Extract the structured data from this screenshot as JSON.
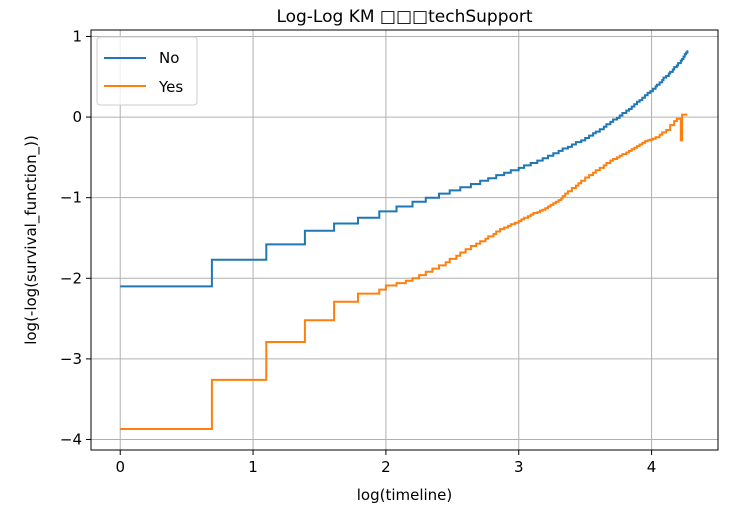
{
  "chart_data": {
    "type": "line",
    "title": "Log-Log KM □□□techSupport",
    "xlabel": "log(timeline)",
    "ylabel": "log(-log(survival_function_))",
    "xlim": [
      -0.22,
      4.5
    ],
    "ylim": [
      -4.13,
      1.08
    ],
    "xticks": [
      0,
      1,
      2,
      3,
      4
    ],
    "yticks": [
      -4,
      -3,
      -2,
      -1,
      0,
      1
    ],
    "xtick_labels": [
      "0",
      "1",
      "2",
      "3",
      "4"
    ],
    "ytick_labels": [
      "−4",
      "−3",
      "−2",
      "−1",
      "0",
      "1"
    ],
    "grid": true,
    "legend_position": "top-left",
    "series": [
      {
        "name": "No",
        "color": "#1f77b4",
        "step": "post",
        "x": [
          0.0,
          0.69,
          1.1,
          1.39,
          1.61,
          1.79,
          1.95,
          2.08,
          2.2,
          2.3,
          2.4,
          2.48,
          2.56,
          2.64,
          2.71,
          2.77,
          2.83,
          2.89,
          2.94,
          3.0,
          3.04,
          3.09,
          3.14,
          3.18,
          3.22,
          3.26,
          3.3,
          3.33,
          3.37,
          3.4,
          3.43,
          3.47,
          3.5,
          3.53,
          3.56,
          3.58,
          3.61,
          3.64,
          3.66,
          3.69,
          3.71,
          3.74,
          3.76,
          3.78,
          3.81,
          3.83,
          3.85,
          3.87,
          3.89,
          3.91,
          3.93,
          3.95,
          3.97,
          3.99,
          4.01,
          4.03,
          4.04,
          4.06,
          4.08,
          4.09,
          4.11,
          4.13,
          4.14,
          4.16,
          4.17,
          4.19,
          4.2,
          4.22,
          4.23,
          4.24,
          4.25,
          4.26,
          4.27
        ],
        "y": [
          -2.1,
          -1.77,
          -1.58,
          -1.41,
          -1.32,
          -1.25,
          -1.17,
          -1.11,
          -1.05,
          -1.0,
          -0.95,
          -0.91,
          -0.87,
          -0.83,
          -0.79,
          -0.76,
          -0.72,
          -0.69,
          -0.66,
          -0.63,
          -0.6,
          -0.57,
          -0.54,
          -0.51,
          -0.48,
          -0.45,
          -0.42,
          -0.39,
          -0.37,
          -0.34,
          -0.31,
          -0.29,
          -0.26,
          -0.23,
          -0.2,
          -0.18,
          -0.15,
          -0.12,
          -0.09,
          -0.06,
          -0.03,
          -0.01,
          0.02,
          0.05,
          0.08,
          0.1,
          0.13,
          0.16,
          0.19,
          0.21,
          0.24,
          0.27,
          0.3,
          0.32,
          0.35,
          0.38,
          0.4,
          0.43,
          0.46,
          0.49,
          0.51,
          0.54,
          0.56,
          0.59,
          0.62,
          0.64,
          0.67,
          0.7,
          0.72,
          0.75,
          0.78,
          0.8,
          0.83
        ]
      },
      {
        "name": "Yes",
        "color": "#ff7f0e",
        "step": "post",
        "x": [
          0.0,
          0.69,
          1.1,
          1.39,
          1.61,
          1.79,
          1.95,
          2.0,
          2.08,
          2.15,
          2.2,
          2.25,
          2.3,
          2.35,
          2.4,
          2.45,
          2.48,
          2.53,
          2.56,
          2.6,
          2.64,
          2.68,
          2.71,
          2.75,
          2.77,
          2.81,
          2.83,
          2.86,
          2.89,
          2.92,
          2.94,
          2.97,
          3.0,
          3.02,
          3.04,
          3.07,
          3.09,
          3.11,
          3.14,
          3.16,
          3.18,
          3.2,
          3.22,
          3.24,
          3.26,
          3.28,
          3.3,
          3.32,
          3.33,
          3.35,
          3.37,
          3.4,
          3.43,
          3.45,
          3.47,
          3.5,
          3.53,
          3.56,
          3.58,
          3.61,
          3.64,
          3.66,
          3.69,
          3.71,
          3.74,
          3.76,
          3.78,
          3.81,
          3.83,
          3.85,
          3.87,
          3.89,
          3.91,
          3.93,
          3.95,
          3.97,
          3.99,
          4.01,
          4.03,
          4.06,
          4.08,
          4.11,
          4.14,
          4.17,
          4.19,
          4.22,
          4.23,
          4.27
        ],
        "y": [
          -3.87,
          -3.26,
          -2.79,
          -2.52,
          -2.29,
          -2.19,
          -2.14,
          -2.09,
          -2.06,
          -2.03,
          -2.0,
          -1.96,
          -1.92,
          -1.88,
          -1.84,
          -1.8,
          -1.76,
          -1.72,
          -1.68,
          -1.64,
          -1.6,
          -1.57,
          -1.54,
          -1.51,
          -1.48,
          -1.45,
          -1.42,
          -1.39,
          -1.37,
          -1.35,
          -1.33,
          -1.31,
          -1.29,
          -1.27,
          -1.25,
          -1.23,
          -1.21,
          -1.19,
          -1.18,
          -1.16,
          -1.15,
          -1.13,
          -1.11,
          -1.09,
          -1.07,
          -1.05,
          -1.03,
          -1.01,
          -0.98,
          -0.95,
          -0.92,
          -0.88,
          -0.85,
          -0.82,
          -0.79,
          -0.75,
          -0.72,
          -0.69,
          -0.66,
          -0.63,
          -0.6,
          -0.57,
          -0.54,
          -0.52,
          -0.5,
          -0.48,
          -0.46,
          -0.44,
          -0.42,
          -0.4,
          -0.38,
          -0.36,
          -0.34,
          -0.32,
          -0.3,
          -0.29,
          -0.28,
          -0.27,
          -0.25,
          -0.22,
          -0.19,
          -0.16,
          -0.1,
          -0.05,
          -0.02,
          -0.29,
          0.03,
          0.03
        ]
      }
    ]
  }
}
